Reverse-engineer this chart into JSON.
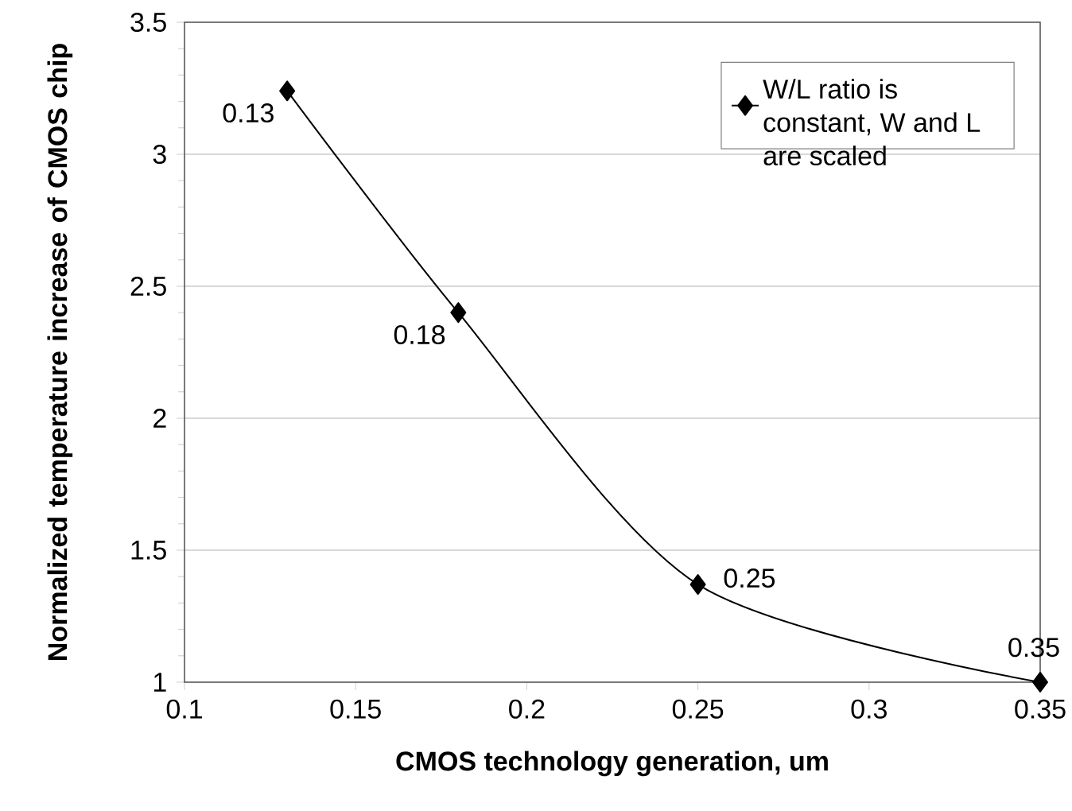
{
  "chart_data": {
    "type": "line",
    "xlabel": "CMOS technology generation, um",
    "ylabel": "Normalized temperature increase of CMOS chip",
    "x": [
      0.13,
      0.18,
      0.25,
      0.35
    ],
    "series": [
      {
        "name": "W/L ratio is constant, W and L are scaled",
        "color": "#000000",
        "values": [
          3.24,
          2.4,
          1.37,
          1.0
        ]
      }
    ],
    "xlim": [
      0.1,
      0.35
    ],
    "xticks": [
      0.1,
      0.15,
      0.2,
      0.25,
      0.3,
      0.35
    ],
    "ylim": [
      1,
      3.5
    ],
    "yticks": [
      1,
      1.5,
      2,
      2.5,
      3,
      3.5
    ],
    "grid": "y",
    "legend": "top right",
    "marker": "diamond",
    "line_style": "solid",
    "annotations": [
      {
        "text": "0.13",
        "x": 0.13,
        "y": 3.24
      },
      {
        "text": "0.18",
        "x": 0.18,
        "y": 2.4
      },
      {
        "text": "0.25",
        "x": 0.25,
        "y": 1.37
      },
      {
        "text": "0.35",
        "x": 0.35,
        "y": 1.0
      }
    ]
  }
}
